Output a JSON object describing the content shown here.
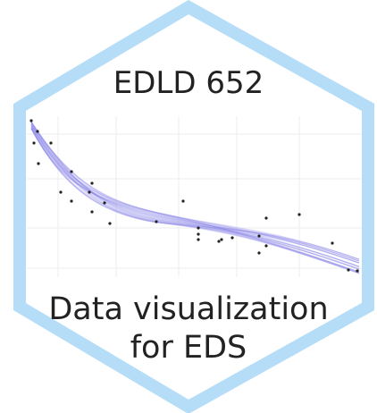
{
  "logo": {
    "title": "EDLD 652",
    "subtitle_lines": [
      "Data visualization",
      "for EDS"
    ]
  }
}
